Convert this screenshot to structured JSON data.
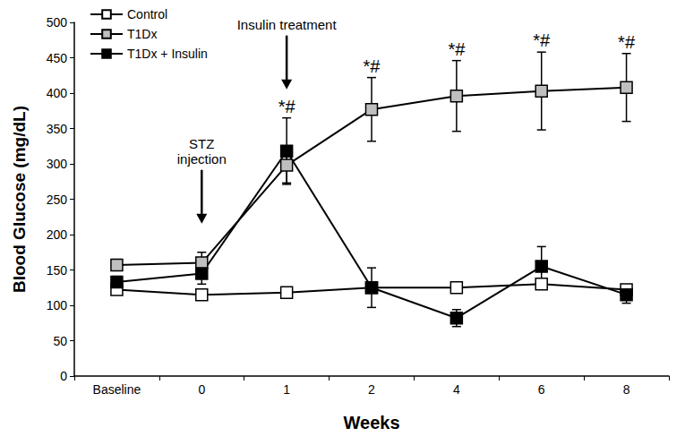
{
  "chart_data": {
    "type": "line",
    "x_label": "Weeks",
    "y_label": "Blood Glucose (mg/dL)",
    "categories": [
      "Baseline",
      "0",
      "1",
      "2",
      "4",
      "6",
      "8"
    ],
    "series": [
      {
        "name": "Control",
        "color": "#ffffff",
        "marker": "square",
        "values": [
          122,
          115,
          118,
          125,
          125,
          130,
          122
        ],
        "errors": [
          5,
          5,
          5,
          5,
          5,
          6,
          5
        ]
      },
      {
        "name": "T1Dx",
        "color": "#bfbfbf",
        "marker": "square",
        "values": [
          157,
          160,
          298,
          377,
          396,
          403,
          408
        ],
        "errors": [
          8,
          15,
          25,
          45,
          50,
          55,
          48
        ]
      },
      {
        "name": "T1Dx + Insulin",
        "color": "#000000",
        "marker": "square",
        "values": [
          133,
          145,
          318,
          125,
          82,
          155,
          115
        ],
        "errors": [
          8,
          15,
          47,
          28,
          12,
          28,
          12
        ]
      }
    ],
    "ylim": [
      0,
      500
    ],
    "yticks": [
      0,
      50,
      100,
      150,
      200,
      250,
      300,
      350,
      400,
      450,
      500
    ],
    "grid": false,
    "legend": "top-left",
    "annotations": [
      {
        "text": "STZ\ninjection",
        "x": "0"
      },
      {
        "text": "Insulin treatment",
        "x": "1"
      }
    ],
    "significance_labels": [
      {
        "text": "*#",
        "x": "1"
      },
      {
        "text": "*#",
        "x": "2"
      },
      {
        "text": "*#",
        "x": "4"
      },
      {
        "text": "*#",
        "x": "6"
      },
      {
        "text": "*#",
        "x": "8"
      }
    ]
  }
}
